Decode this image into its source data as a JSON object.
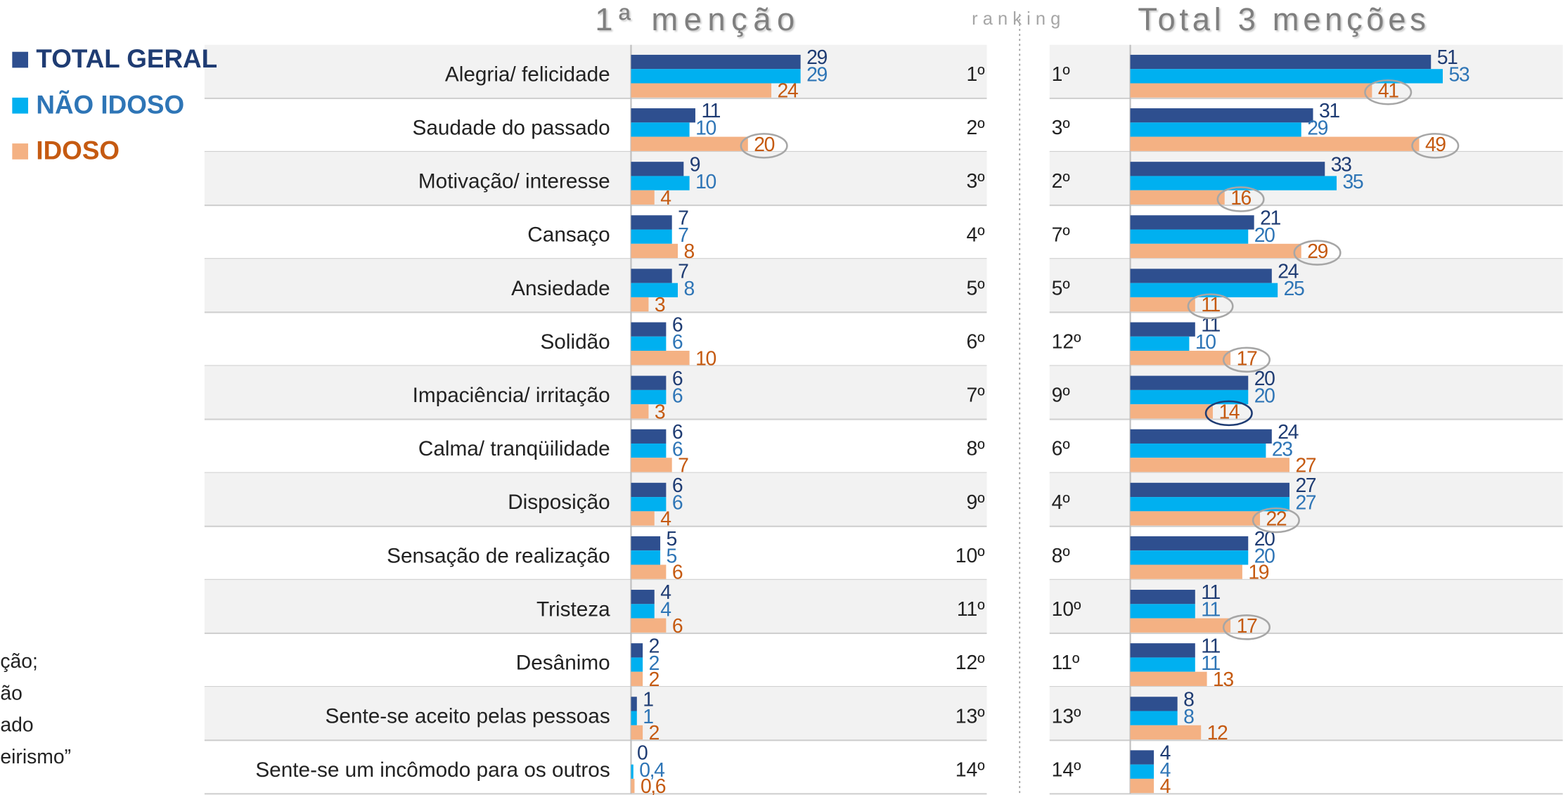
{
  "chart_data": {
    "type": "bar",
    "orientation": "horizontal",
    "legend": "top-left",
    "categories": [
      "Alegria/ felicidade",
      "Saudade do passado",
      "Motivação/ interesse",
      "Cansaço",
      "Ansiedade",
      "Solidão",
      "Impaciência/ irritação",
      "Calma/ tranqüilidade",
      "Disposição",
      "Sensação de realização",
      "Tristeza",
      "Desânimo",
      "Sente-se aceito pelas pessoas",
      "Sente-se um incômodo para os outros"
    ],
    "ranking_label": "ranking",
    "side_note": [
      "ção;",
      "ão",
      "ado",
      "eirismo”"
    ],
    "panels": [
      {
        "title": "1ª menção",
        "xlim": [
          0,
          60
        ],
        "ranking": [
          "1º",
          "2º",
          "3º",
          "4º",
          "5º",
          "6º",
          "7º",
          "8º",
          "9º",
          "10º",
          "11º",
          "12º",
          "13º",
          "14º"
        ],
        "series": [
          {
            "name": "TOTAL GERAL",
            "color": "#2e4f8f",
            "label_color": "#1f3c73",
            "values": [
              29,
              11,
              9,
              7,
              7,
              6,
              6,
              6,
              6,
              5,
              4,
              2,
              1,
              0
            ]
          },
          {
            "name": "NÃO IDOSO",
            "color": "#00b0f0",
            "label_color": "#2e75b6",
            "values": [
              29,
              10,
              10,
              7,
              8,
              6,
              6,
              6,
              6,
              5,
              4,
              2,
              1,
              0.4
            ],
            "value_labels": [
              "29",
              "10",
              "10",
              "7",
              "8",
              "6",
              "6",
              "6",
              "6",
              "5",
              "4",
              "2",
              "1",
              "0,4"
            ]
          },
          {
            "name": "IDOSO",
            "color": "#f4b183",
            "label_color": "#c55a11",
            "values": [
              24,
              20,
              4,
              8,
              3,
              10,
              3,
              7,
              4,
              6,
              6,
              2,
              2,
              0.6
            ],
            "value_labels": [
              "24",
              "20",
              "4",
              "8",
              "3",
              "10",
              "3",
              "7",
              "4",
              "6",
              "6",
              "2",
              "2",
              "0,6"
            ],
            "circled": [
              1
            ],
            "circle_color": "#a6a6a6"
          }
        ]
      },
      {
        "title": "Total 3 menções",
        "xlim": [
          0,
          60
        ],
        "ranking": [
          "1º",
          "3º",
          "2º",
          "7º",
          "5º",
          "12º",
          "9º",
          "6º",
          "4º",
          "8º",
          "10º",
          "11º",
          "13º",
          "14º"
        ],
        "series": [
          {
            "name": "TOTAL GERAL",
            "color": "#2e4f8f",
            "label_color": "#1f3c73",
            "values": [
              51,
              31,
              33,
              21,
              24,
              11,
              20,
              24,
              27,
              20,
              11,
              11,
              8,
              4
            ]
          },
          {
            "name": "NÃO IDOSO",
            "color": "#00b0f0",
            "label_color": "#2e75b6",
            "values": [
              53,
              29,
              35,
              20,
              25,
              10,
              20,
              23,
              27,
              20,
              11,
              11,
              8,
              4
            ]
          },
          {
            "name": "IDOSO",
            "color": "#f4b183",
            "label_color": "#c55a11",
            "values": [
              41,
              49,
              16,
              29,
              11,
              17,
              14,
              27,
              22,
              19,
              17,
              13,
              12,
              4
            ],
            "circled": [
              0,
              1,
              2,
              3,
              4,
              5,
              6,
              8,
              10
            ],
            "circle_color": "#a6a6a6",
            "circled_dark": [
              6
            ],
            "circle_dark_color": "#1f3c73"
          }
        ]
      }
    ]
  }
}
